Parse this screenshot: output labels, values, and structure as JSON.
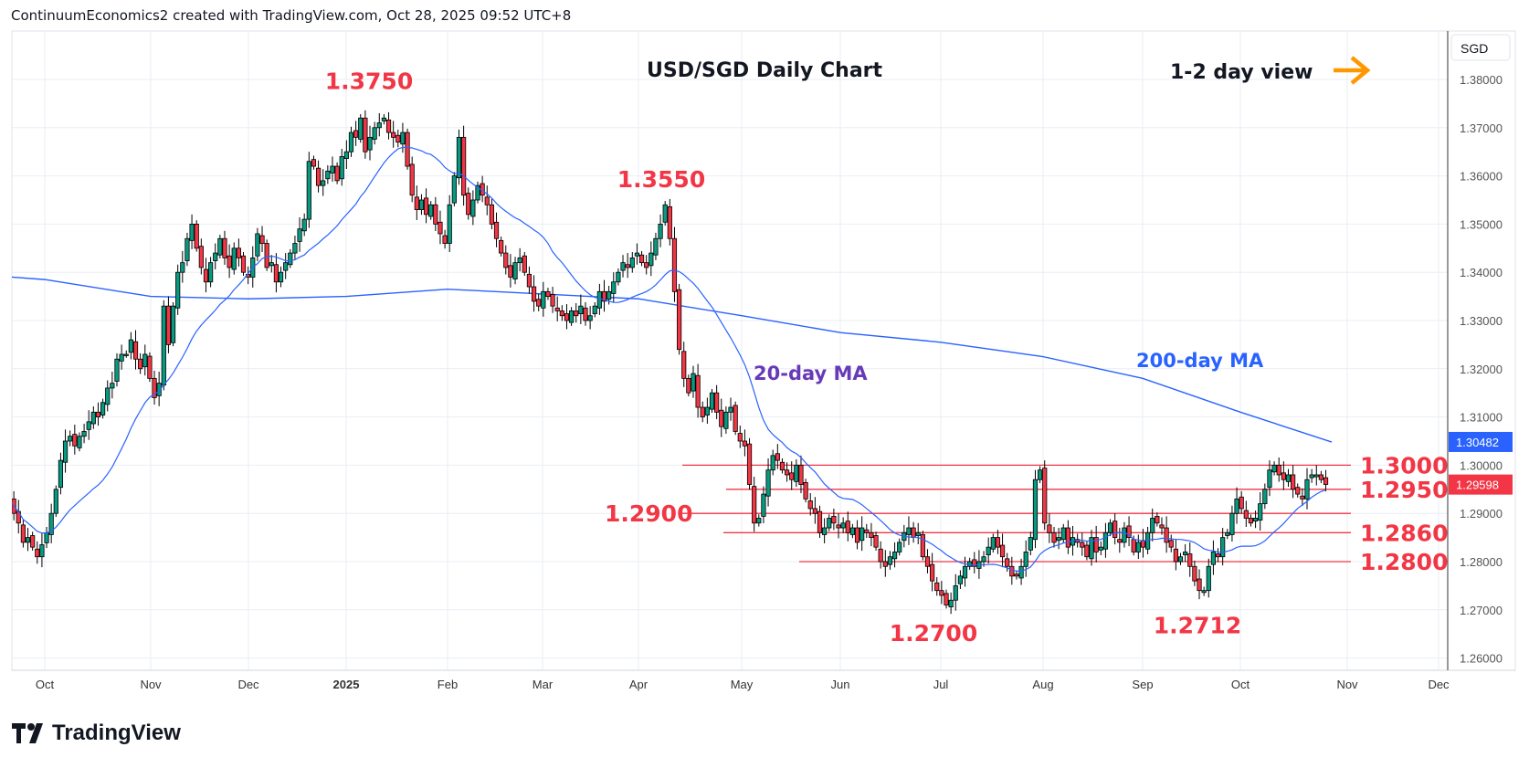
{
  "header": {
    "credit": "ContinuumEconomics2 created with TradingView.com, Oct 28, 2025 09:52 UTC+8"
  },
  "brand": {
    "logo_text": "TradingView"
  },
  "colors": {
    "up": "#089981",
    "down": "#f23645",
    "ma": "#2962ff",
    "annotation": "#f23645",
    "ma20_label": "#673ab7",
    "arrow": "#ff9800"
  },
  "chart_data": {
    "type": "candlestick",
    "title": "USD/SGD Daily Chart",
    "subtitle": "1-2 day view",
    "arrow_icon": "arrow-right-icon",
    "currency": "SGD",
    "ylim": [
      1.26,
      1.385
    ],
    "yticks": [
      "1.38000",
      "1.37000",
      "1.36000",
      "1.35000",
      "1.34000",
      "1.33000",
      "1.32000",
      "1.31000",
      "1.30000",
      "1.29000",
      "1.28000",
      "1.27000",
      "1.26000"
    ],
    "xticks": [
      "Oct",
      "Nov",
      "Dec",
      "2025",
      "Feb",
      "Mar",
      "Apr",
      "May",
      "Jun",
      "Jul",
      "Aug",
      "Sep",
      "Oct",
      "Nov",
      "Dec"
    ],
    "grid": true,
    "close": [
      1.293,
      1.29,
      1.288,
      1.284,
      1.285,
      1.283,
      1.281,
      1.2835,
      1.286,
      1.29,
      1.295,
      1.301,
      1.305,
      1.306,
      1.304,
      1.306,
      1.307,
      1.309,
      1.311,
      1.31,
      1.313,
      1.316,
      1.317,
      1.322,
      1.323,
      1.323,
      1.326,
      1.322,
      1.32,
      1.323,
      1.318,
      1.314,
      1.317,
      1.333,
      1.325,
      1.333,
      1.34,
      1.342,
      1.347,
      1.35,
      1.345,
      1.341,
      1.338,
      1.342,
      1.344,
      1.347,
      1.343,
      1.341,
      1.345,
      1.343,
      1.34,
      1.339,
      1.343,
      1.348,
      1.346,
      1.341,
      1.342,
      1.338,
      1.34,
      1.342,
      1.344,
      1.346,
      1.349,
      1.351,
      1.363,
      1.362,
      1.358,
      1.359,
      1.361,
      1.362,
      1.359,
      1.364,
      1.365,
      1.369,
      1.368,
      1.372,
      1.365,
      1.368,
      1.37,
      1.371,
      1.372,
      1.369,
      1.368,
      1.367,
      1.369,
      1.362,
      1.356,
      1.353,
      1.355,
      1.352,
      1.354,
      1.35,
      1.348,
      1.346,
      1.354,
      1.36,
      1.368,
      1.356,
      1.352,
      1.355,
      1.358,
      1.356,
      1.354,
      1.35,
      1.347,
      1.344,
      1.341,
      1.339,
      1.342,
      1.343,
      1.34,
      1.337,
      1.334,
      1.333,
      1.336,
      1.335,
      1.333,
      1.332,
      1.331,
      1.33,
      1.332,
      1.331,
      1.333,
      1.33,
      1.331,
      1.333,
      1.336,
      1.334,
      1.336,
      1.338,
      1.34,
      1.342,
      1.341,
      1.343,
      1.344,
      1.342,
      1.341,
      1.344,
      1.347,
      1.35,
      1.354,
      1.347,
      1.336,
      1.324,
      1.318,
      1.315,
      1.319,
      1.312,
      1.31,
      1.312,
      1.315,
      1.311,
      1.308,
      1.311,
      1.312,
      1.307,
      1.305,
      1.304,
      1.296,
      1.288,
      1.289,
      1.294,
      1.299,
      1.302,
      1.301,
      1.299,
      1.298,
      1.297,
      1.3,
      1.296,
      1.293,
      1.291,
      1.29,
      1.286,
      1.287,
      1.289,
      1.288,
      1.287,
      1.288,
      1.286,
      1.287,
      1.284,
      1.287,
      1.286,
      1.285,
      1.283,
      1.28,
      1.279,
      1.281,
      1.282,
      1.284,
      1.286,
      1.287,
      1.285,
      1.286,
      1.281,
      1.279,
      1.276,
      1.274,
      1.273,
      1.271,
      1.272,
      1.275,
      1.277,
      1.279,
      1.28,
      1.279,
      1.28,
      1.281,
      1.283,
      1.285,
      1.283,
      1.281,
      1.279,
      1.277,
      1.277,
      1.279,
      1.282,
      1.285,
      1.297,
      1.299,
      1.288,
      1.286,
      1.284,
      1.285,
      1.287,
      1.283,
      1.285,
      1.284,
      1.283,
      1.281,
      1.285,
      1.282,
      1.283,
      1.286,
      1.288,
      1.285,
      1.284,
      1.287,
      1.285,
      1.282,
      1.284,
      1.283,
      1.286,
      1.289,
      1.288,
      1.287,
      1.284,
      1.283,
      1.28,
      1.281,
      1.282,
      1.279,
      1.276,
      1.274,
      1.274,
      1.279,
      1.282,
      1.281,
      1.285,
      1.286,
      1.29,
      1.293,
      1.291,
      1.289,
      1.288,
      1.289,
      1.292,
      1.295,
      1.299,
      1.3,
      1.298,
      1.297,
      1.298,
      1.295,
      1.294,
      1.293,
      1.297,
      1.298,
      1.298,
      1.297,
      1.296
    ],
    "ma200": {
      "label": "200-day MA",
      "month_values": [
        1.339,
        1.3385,
        1.335,
        1.3345,
        1.335,
        1.3365,
        1.3355,
        1.3345,
        1.331,
        1.3275,
        1.3255,
        1.3225,
        1.318,
        1.311,
        1.3048
      ]
    },
    "ma20": {
      "label": "20-day MA",
      "period": 20
    },
    "levels": [
      {
        "value": 1.3,
        "label": "1.3000"
      },
      {
        "value": 1.295,
        "label": "1.2950"
      },
      {
        "value": 1.29,
        "label": "1.2900"
      },
      {
        "value": 1.286,
        "label": "1.2860"
      },
      {
        "value": 1.28,
        "label": "1.2800"
      }
    ],
    "annotations": [
      {
        "text": "1.3750",
        "value": 1.375
      },
      {
        "text": "1.3550",
        "value": 1.355
      },
      {
        "text": "1.2700",
        "value": 1.27
      },
      {
        "text": "1.2712",
        "value": 1.2712
      }
    ],
    "price_tags": [
      {
        "label": "1.30482",
        "value": 1.30482,
        "color": "#2962ff"
      },
      {
        "label": "1.29598",
        "value": 1.29598,
        "color": "#f23645"
      }
    ]
  }
}
